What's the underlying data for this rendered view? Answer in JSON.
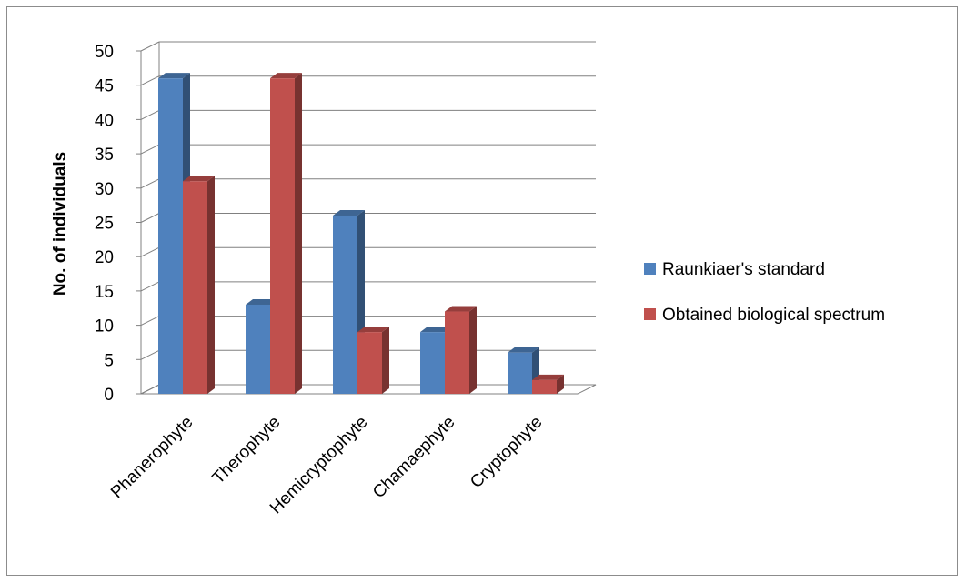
{
  "chart_data": {
    "type": "bar",
    "style": "3d-clustered-column",
    "ylabel": "No. of individuals",
    "xlabel": "",
    "ylim": [
      0,
      50
    ],
    "yticks": [
      0,
      5,
      10,
      15,
      20,
      25,
      30,
      35,
      40,
      45,
      50
    ],
    "grid": true,
    "legend_position": "right",
    "categories": [
      "Phanerophyte",
      "Therophyte",
      "Hemicryptophyte",
      "Chamaephyte",
      "Cryptophyte"
    ],
    "series": [
      {
        "name": "Raunkiaer's standard",
        "color": "#4f81bd",
        "values": [
          46,
          13,
          26,
          9,
          6
        ]
      },
      {
        "name": "Obtained biological spectrum",
        "color": "#c0504d",
        "values": [
          31,
          46,
          9,
          12,
          2
        ]
      }
    ]
  }
}
